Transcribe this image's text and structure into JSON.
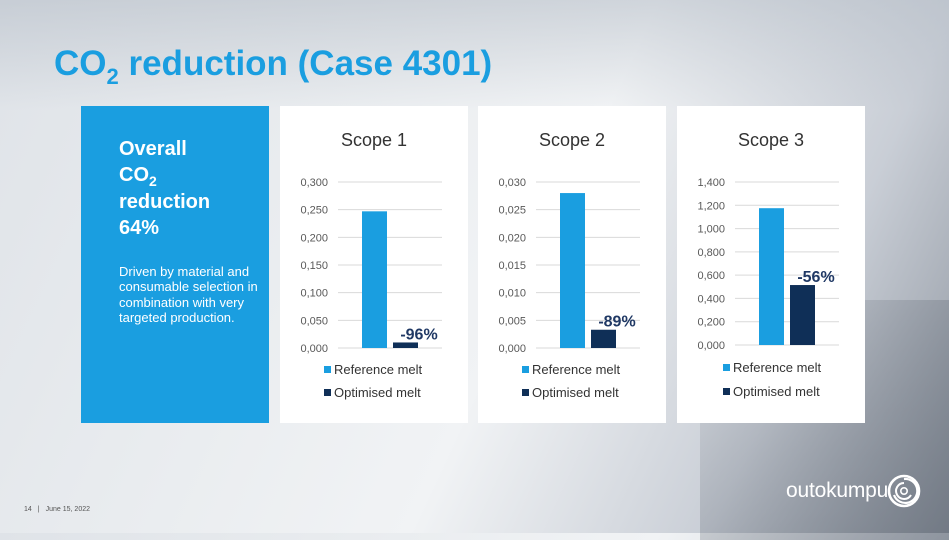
{
  "slide": {
    "title_main": "CO",
    "title_sub": "2",
    "title_rest": " reduction (Case 4301)"
  },
  "summary": {
    "line1": "Overall",
    "line2_main": "CO",
    "line2_sub": "2",
    "line3": "reduction",
    "line4": "64%",
    "body": "Driven by material and consumable selection in combination with very targeted production."
  },
  "colors": {
    "reference": "#1a9ee0",
    "optimised": "#0f2f57",
    "accent": "#1a9ee0"
  },
  "chart_data": [
    {
      "type": "bar",
      "title": "Scope 1",
      "categories": [
        "Reference melt",
        "Optimised melt"
      ],
      "values": [
        0.247,
        0.01
      ],
      "ylim": [
        0,
        0.3
      ],
      "yticks": [
        "0,000",
        "0,050",
        "0,100",
        "0,150",
        "0,200",
        "0,250",
        "0,300"
      ],
      "annotation": "-96%",
      "grid": true,
      "legend": "bottom"
    },
    {
      "type": "bar",
      "title": "Scope 2",
      "categories": [
        "Reference melt",
        "Optimised melt"
      ],
      "values": [
        0.028,
        0.0033
      ],
      "ylim": [
        0,
        0.03
      ],
      "yticks": [
        "0,000",
        "0,005",
        "0,010",
        "0,015",
        "0,020",
        "0,025",
        "0,030"
      ],
      "annotation": "-89%",
      "grid": true,
      "legend": "bottom"
    },
    {
      "type": "bar",
      "title": "Scope 3",
      "categories": [
        "Reference melt",
        "Optimised melt"
      ],
      "values": [
        1.175,
        0.515
      ],
      "ylim": [
        0,
        1.4
      ],
      "yticks": [
        "0,000",
        "0,200",
        "0,400",
        "0,600",
        "0,800",
        "1,000",
        "1,200",
        "1,400"
      ],
      "annotation": "-56%",
      "grid": true,
      "legend": "bottom"
    }
  ],
  "footer": {
    "page": "14",
    "separator": "|",
    "date": "June 15, 2022"
  },
  "brand": {
    "name": "outokumpu",
    "logo_icon": "outokumpu-ring-logo"
  }
}
